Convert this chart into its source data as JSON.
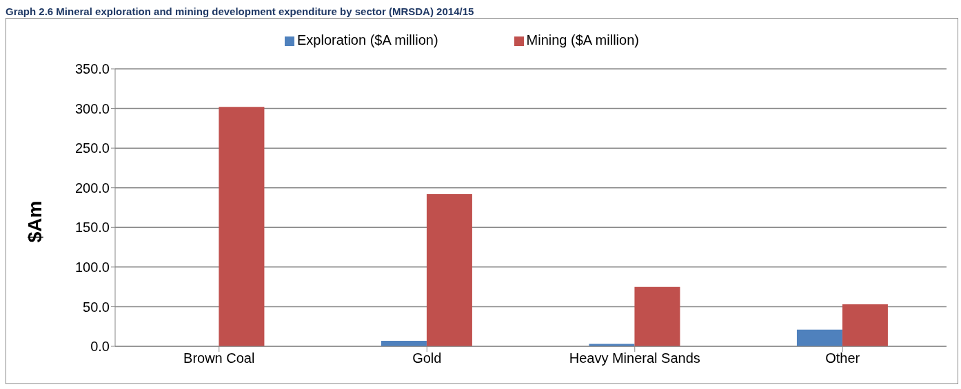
{
  "chart_data": {
    "type": "bar",
    "title": "Graph 2.6 Mineral exploration and mining development expenditure by sector (MRSDA) 2014/15",
    "ylabel": "$Am",
    "categories": [
      "Brown Coal",
      "Gold",
      "Heavy Mineral Sands",
      "Other"
    ],
    "series": [
      {
        "name": "Exploration ($A million)",
        "color": "#4f81bd",
        "values": [
          0,
          7,
          3,
          21
        ]
      },
      {
        "name": "Mining ($A million)",
        "color": "#c0504d",
        "values": [
          302,
          192,
          75,
          53
        ]
      }
    ],
    "ylim": [
      0,
      350
    ],
    "yticks": [
      {
        "value": 0,
        "label": "0.0"
      },
      {
        "value": 50,
        "label": "50.0"
      },
      {
        "value": 100,
        "label": "100.0"
      },
      {
        "value": 150,
        "label": "150.0"
      },
      {
        "value": 200,
        "label": "200.0"
      },
      {
        "value": 250,
        "label": "250.0"
      },
      {
        "value": 300,
        "label": "300.0"
      },
      {
        "value": 350,
        "label": "350.0"
      }
    ],
    "grid": "y",
    "legend": "top"
  }
}
